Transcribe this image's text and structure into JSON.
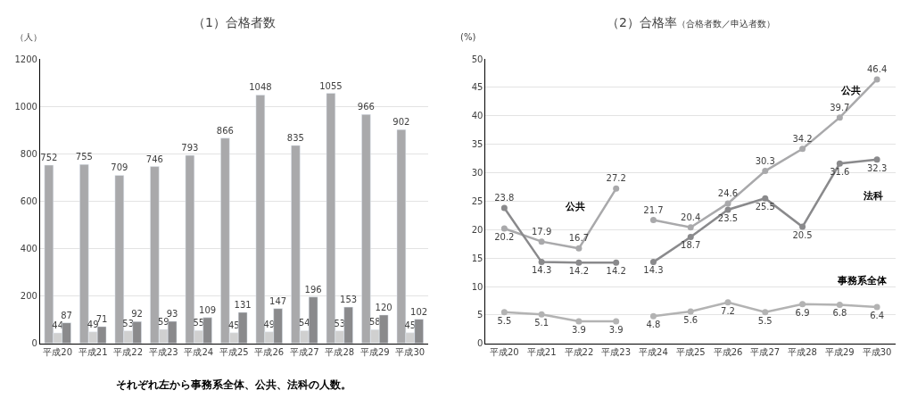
{
  "chart_data": [
    {
      "type": "bar",
      "title": "（1）合格者数",
      "ylabel": "（人）",
      "categories": [
        "平成20",
        "平成21",
        "平成22",
        "平成23",
        "平成24",
        "平成25",
        "平成26",
        "平成27",
        "平成28",
        "平成29",
        "平成30"
      ],
      "series": [
        {
          "color": "#a9a9ab",
          "values": [
            752,
            755,
            709,
            746,
            793,
            866,
            1048,
            835,
            1055,
            966,
            902
          ]
        },
        {
          "color": "#d0d0d0",
          "values": [
            44,
            49,
            53,
            59,
            55,
            45,
            49,
            54,
            53,
            58,
            45
          ]
        },
        {
          "color": "#8a8a8c",
          "values": [
            87,
            71,
            92,
            93,
            109,
            131,
            147,
            196,
            153,
            120,
            102
          ]
        }
      ],
      "ylim": [
        0,
        1200
      ],
      "yticks": [
        0,
        200,
        400,
        600,
        800,
        1000,
        1200
      ],
      "grid": "y",
      "data_labels": true,
      "annotations": [
        "それぞれ左から事務系全体、公共、法科の人数。"
      ]
    },
    {
      "type": "line",
      "title": "（2）合格率",
      "subtitle": "（合格者数／申込者数）",
      "ylabel": "(%)",
      "categories": [
        "平成20",
        "平成21",
        "平成22",
        "平成23",
        "平成24",
        "平成25",
        "平成26",
        "平成27",
        "平成28",
        "平成29",
        "平成30"
      ],
      "series": [
        {
          "color": "#a9a9ab",
          "values": [
            20.2,
            17.9,
            16.7,
            27.2,
            null,
            null,
            null,
            null,
            null,
            null,
            null
          ]
        },
        {
          "color": "#a9a9ab",
          "values": [
            null,
            null,
            null,
            null,
            21.7,
            20.4,
            24.6,
            30.3,
            34.2,
            39.7,
            46.4
          ]
        },
        {
          "color": "#8a8a8c",
          "values": [
            23.8,
            14.3,
            14.2,
            14.2,
            null,
            null,
            null,
            null,
            null,
            null,
            null
          ]
        },
        {
          "color": "#8a8a8c",
          "values": [
            null,
            null,
            null,
            null,
            14.3,
            18.7,
            23.5,
            25.5,
            20.5,
            31.6,
            32.3
          ]
        },
        {
          "color": "#b3b3b3",
          "values": [
            5.5,
            5.1,
            3.9,
            3.9,
            null,
            null,
            null,
            null,
            null,
            null,
            null
          ]
        },
        {
          "color": "#b3b3b3",
          "values": [
            null,
            null,
            null,
            null,
            4.8,
            5.6,
            7.2,
            5.5,
            6.9,
            6.8,
            6.4
          ]
        }
      ],
      "ylim": [
        0,
        50
      ],
      "yticks": [
        0,
        5,
        10,
        15,
        20,
        25,
        30,
        35,
        40,
        45,
        50
      ],
      "grid": "y",
      "data_labels": true,
      "marker": "circle",
      "line_style": "solid",
      "annotations": [
        "公共",
        "公共",
        "法科",
        "事務系全体"
      ]
    }
  ]
}
